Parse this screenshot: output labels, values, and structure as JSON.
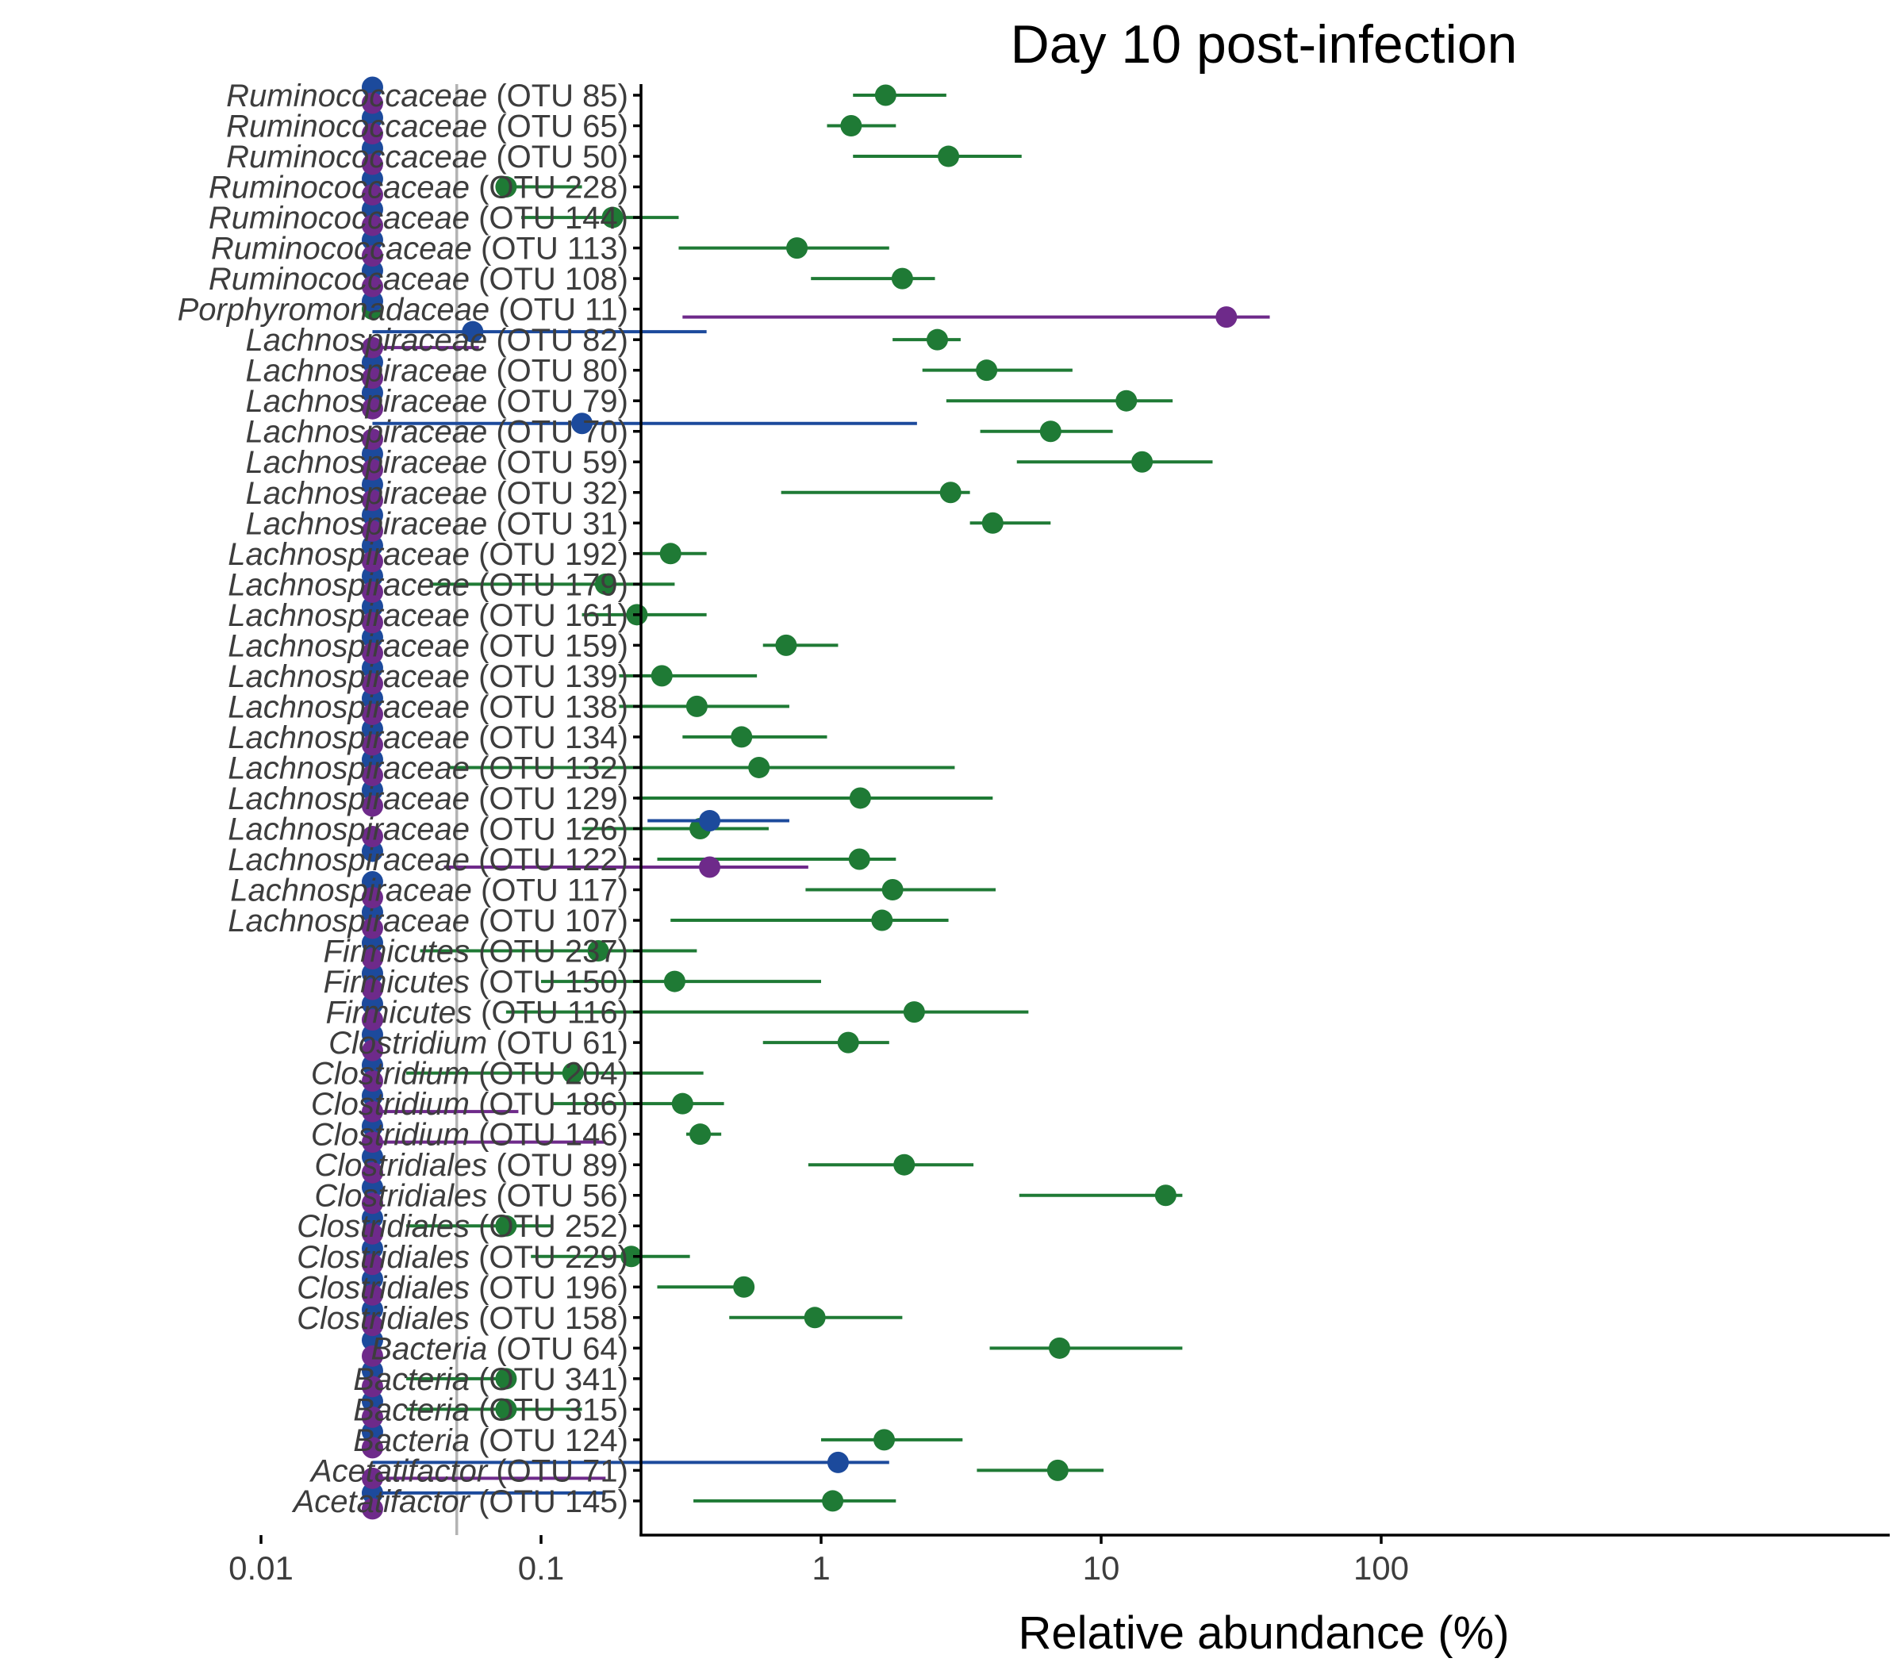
{
  "chart_data": {
    "type": "scatter",
    "title": "Day 10 post-infection",
    "xlabel": "Relative abundance (%)",
    "ylabel": "",
    "x_scale": "log10",
    "xlim": [
      0.005,
      150
    ],
    "x_ticks": [
      0.01,
      0.1,
      1,
      10,
      100
    ],
    "x_tick_labels": [
      "0.01",
      "0.1",
      "1",
      "10",
      "100"
    ],
    "reference_line_x": 0.05,
    "grid": false,
    "legend": "none",
    "colors": {
      "green": "#1f7a35",
      "blue": "#1c4a9c",
      "purple": "#6e2a8a",
      "reference_line": "#b3b3b3",
      "axis": "#000000"
    },
    "categories": [
      {
        "genus": "Ruminococcaceae",
        "otu": "(OTU 85)"
      },
      {
        "genus": "Ruminococcaceae",
        "otu": "(OTU 65)"
      },
      {
        "genus": "Ruminococcaceae",
        "otu": "(OTU 50)"
      },
      {
        "genus": "Ruminococcaceae",
        "otu": "(OTU 228)"
      },
      {
        "genus": "Ruminococcaceae",
        "otu": "(OTU 144)"
      },
      {
        "genus": "Ruminococcaceae",
        "otu": "(OTU 113)"
      },
      {
        "genus": "Ruminococcaceae",
        "otu": "(OTU 108)"
      },
      {
        "genus": "Porphyromonadaceae",
        "otu": "(OTU 11)"
      },
      {
        "genus": "Lachnospiraceae",
        "otu": "(OTU 82)"
      },
      {
        "genus": "Lachnospiraceae",
        "otu": "(OTU 80)"
      },
      {
        "genus": "Lachnospiraceae",
        "otu": "(OTU 79)"
      },
      {
        "genus": "Lachnospiraceae",
        "otu": "(OTU 70)"
      },
      {
        "genus": "Lachnospiraceae",
        "otu": "(OTU 59)"
      },
      {
        "genus": "Lachnospiraceae",
        "otu": "(OTU 32)"
      },
      {
        "genus": "Lachnospiraceae",
        "otu": "(OTU 31)"
      },
      {
        "genus": "Lachnospiraceae",
        "otu": "(OTU 192)"
      },
      {
        "genus": "Lachnospiraceae",
        "otu": "(OTU 179)"
      },
      {
        "genus": "Lachnospiraceae",
        "otu": "(OTU 161)"
      },
      {
        "genus": "Lachnospiraceae",
        "otu": "(OTU 159)"
      },
      {
        "genus": "Lachnospiraceae",
        "otu": "(OTU 139)"
      },
      {
        "genus": "Lachnospiraceae",
        "otu": "(OTU 138)"
      },
      {
        "genus": "Lachnospiraceae",
        "otu": "(OTU 134)"
      },
      {
        "genus": "Lachnospiraceae",
        "otu": "(OTU 132)"
      },
      {
        "genus": "Lachnospiraceae",
        "otu": "(OTU 129)"
      },
      {
        "genus": "Lachnospiraceae",
        "otu": "(OTU 126)"
      },
      {
        "genus": "Lachnospiraceae",
        "otu": "(OTU 122)"
      },
      {
        "genus": "Lachnospiraceae",
        "otu": "(OTU 117)"
      },
      {
        "genus": "Lachnospiraceae",
        "otu": "(OTU 107)"
      },
      {
        "genus": "Firmicutes",
        "otu": "(OTU 237)"
      },
      {
        "genus": "Firmicutes",
        "otu": "(OTU 150)"
      },
      {
        "genus": "Firmicutes",
        "otu": "(OTU 116)"
      },
      {
        "genus": "Clostridium",
        "otu": "(OTU 61)"
      },
      {
        "genus": "Clostridium",
        "otu": "(OTU 204)"
      },
      {
        "genus": "Clostridium",
        "otu": "(OTU 186)"
      },
      {
        "genus": "Clostridium",
        "otu": "(OTU 146)"
      },
      {
        "genus": "Clostridiales",
        "otu": "(OTU 89)"
      },
      {
        "genus": "Clostridiales",
        "otu": "(OTU 56)"
      },
      {
        "genus": "Clostridiales",
        "otu": "(OTU 252)"
      },
      {
        "genus": "Clostridiales",
        "otu": "(OTU 229)"
      },
      {
        "genus": "Clostridiales",
        "otu": "(OTU 196)"
      },
      {
        "genus": "Clostridiales",
        "otu": "(OTU 158)"
      },
      {
        "genus": "Bacteria",
        "otu": "(OTU 64)"
      },
      {
        "genus": "Bacteria",
        "otu": "(OTU 341)"
      },
      {
        "genus": "Bacteria",
        "otu": "(OTU 315)"
      },
      {
        "genus": "Bacteria",
        "otu": "(OTU 124)"
      },
      {
        "genus": "Acetatifactor",
        "otu": "(OTU 71)"
      },
      {
        "genus": "Acetatifactor",
        "otu": "(OTU 145)"
      }
    ],
    "baseline_value": 0.025,
    "series": [
      {
        "color": "green",
        "points": [
          {
            "x": 1.7,
            "lo": 1.3,
            "hi": 2.8
          },
          {
            "x": 1.28,
            "lo": 1.05,
            "hi": 1.85
          },
          {
            "x": 2.85,
            "lo": 1.3,
            "hi": 5.2
          },
          {
            "x": 0.075,
            "lo": 0.075,
            "hi": 0.14
          },
          {
            "x": 0.18,
            "lo": 0.085,
            "hi": 0.31
          },
          {
            "x": 0.82,
            "lo": 0.31,
            "hi": 1.75
          },
          {
            "x": 1.95,
            "lo": 0.92,
            "hi": 2.55
          },
          {
            "x": 0.025
          },
          {
            "x": 2.6,
            "lo": 1.8,
            "hi": 3.15
          },
          {
            "x": 3.9,
            "lo": 2.3,
            "hi": 7.9
          },
          {
            "x": 12.3,
            "lo": 2.8,
            "hi": 18.0
          },
          {
            "x": 6.6,
            "lo": 3.7,
            "hi": 11.0
          },
          {
            "x": 14.0,
            "lo": 5.0,
            "hi": 25.0
          },
          {
            "x": 2.9,
            "lo": 0.72,
            "hi": 3.4
          },
          {
            "x": 4.1,
            "lo": 3.4,
            "hi": 6.6
          },
          {
            "x": 0.29,
            "lo": 0.23,
            "hi": 0.39
          },
          {
            "x": 0.17,
            "lo": 0.04,
            "hi": 0.3
          },
          {
            "x": 0.22,
            "lo": 0.14,
            "hi": 0.39
          },
          {
            "x": 0.75,
            "lo": 0.62,
            "hi": 1.15
          },
          {
            "x": 0.27,
            "lo": 0.19,
            "hi": 0.59
          },
          {
            "x": 0.36,
            "lo": 0.19,
            "hi": 0.77
          },
          {
            "x": 0.52,
            "lo": 0.32,
            "hi": 1.05
          },
          {
            "x": 0.6,
            "lo": 0.047,
            "hi": 3.0
          },
          {
            "x": 1.38,
            "lo": 0.22,
            "hi": 4.1
          },
          {
            "x": 0.37,
            "lo": 0.14,
            "hi": 0.65
          },
          {
            "x": 1.37,
            "lo": 0.26,
            "hi": 1.85
          },
          {
            "x": 1.8,
            "lo": 0.88,
            "hi": 4.2
          },
          {
            "x": 1.65,
            "lo": 0.29,
            "hi": 2.85
          },
          {
            "x": 0.16,
            "lo": 0.037,
            "hi": 0.36
          },
          {
            "x": 0.3,
            "lo": 0.1,
            "hi": 1.0
          },
          {
            "x": 2.15,
            "lo": 0.075,
            "hi": 5.5
          },
          {
            "x": 1.25,
            "lo": 0.62,
            "hi": 1.75
          },
          {
            "x": 0.13,
            "lo": 0.033,
            "hi": 0.38
          },
          {
            "x": 0.32,
            "lo": 0.11,
            "hi": 0.45
          },
          {
            "x": 0.37,
            "lo": 0.33,
            "hi": 0.44
          },
          {
            "x": 1.98,
            "lo": 0.9,
            "hi": 3.5
          },
          {
            "x": 17.0,
            "lo": 5.1,
            "hi": 19.5
          },
          {
            "x": 0.075,
            "lo": 0.033,
            "hi": 0.11
          },
          {
            "x": 0.21,
            "lo": 0.092,
            "hi": 0.34
          },
          {
            "x": 0.53,
            "lo": 0.26,
            "hi": 0.53
          },
          {
            "x": 0.95,
            "lo": 0.47,
            "hi": 1.95
          },
          {
            "x": 7.1,
            "lo": 4.0,
            "hi": 19.5
          },
          {
            "x": 0.075,
            "lo": 0.033,
            "hi": 0.075
          },
          {
            "x": 0.075,
            "lo": 0.033,
            "hi": 0.14
          },
          {
            "x": 1.68,
            "lo": 1.0,
            "hi": 3.2
          },
          {
            "x": 7.0,
            "lo": 3.6,
            "hi": 10.2
          },
          {
            "x": 1.1,
            "lo": 0.35,
            "hi": 1.85
          }
        ]
      },
      {
        "color": "blue",
        "points": [
          {
            "x": 0.025
          },
          {
            "x": 0.025
          },
          {
            "x": 0.025
          },
          {
            "x": 0.025
          },
          {
            "x": 0.025
          },
          {
            "x": 0.025
          },
          {
            "x": 0.025
          },
          {
            "x": 0.025
          },
          {
            "x": 0.057,
            "lo": 0.025,
            "hi": 0.39
          },
          {
            "x": 0.025
          },
          {
            "x": 0.025
          },
          {
            "x": 0.14,
            "lo": 0.025,
            "hi": 2.2
          },
          {
            "x": 0.025
          },
          {
            "x": 0.025
          },
          {
            "x": 0.025
          },
          {
            "x": 0.025
          },
          {
            "x": 0.025
          },
          {
            "x": 0.025
          },
          {
            "x": 0.025
          },
          {
            "x": 0.025
          },
          {
            "x": 0.025
          },
          {
            "x": 0.025
          },
          {
            "x": 0.025
          },
          {
            "x": 0.025
          },
          {
            "x": 0.4,
            "lo": 0.24,
            "hi": 0.77
          },
          {
            "x": 0.025
          },
          {
            "x": 0.025
          },
          {
            "x": 0.025
          },
          {
            "x": 0.025
          },
          {
            "x": 0.025
          },
          {
            "x": 0.025
          },
          {
            "x": 0.025
          },
          {
            "x": 0.025
          },
          {
            "x": 0.025
          },
          {
            "x": 0.025
          },
          {
            "x": 0.025
          },
          {
            "x": 0.025
          },
          {
            "x": 0.025
          },
          {
            "x": 0.025
          },
          {
            "x": 0.025
          },
          {
            "x": 0.025
          },
          {
            "x": 0.025
          },
          {
            "x": 0.025
          },
          {
            "x": 0.025
          },
          {
            "x": 0.025
          },
          {
            "x": 1.15,
            "lo": 0.025,
            "hi": 1.75
          },
          {
            "x": 0.025,
            "lo": 0.025,
            "hi": 0.17
          }
        ]
      },
      {
        "color": "purple",
        "points": [
          {
            "x": 0.025
          },
          {
            "x": 0.025
          },
          {
            "x": 0.025
          },
          {
            "x": 0.025
          },
          {
            "x": 0.025
          },
          {
            "x": 0.025
          },
          {
            "x": 0.025
          },
          {
            "x": 28.0,
            "lo": 0.32,
            "hi": 40.0
          },
          {
            "x": 0.025,
            "lo": 0.025,
            "hi": 0.06
          },
          {
            "x": 0.025
          },
          {
            "x": 0.025
          },
          {
            "x": 0.025
          },
          {
            "x": 0.025
          },
          {
            "x": 0.025
          },
          {
            "x": 0.025
          },
          {
            "x": 0.025
          },
          {
            "x": 0.025
          },
          {
            "x": 0.025
          },
          {
            "x": 0.025
          },
          {
            "x": 0.025
          },
          {
            "x": 0.025
          },
          {
            "x": 0.025
          },
          {
            "x": 0.025
          },
          {
            "x": 0.025
          },
          {
            "x": 0.025
          },
          {
            "x": 0.4,
            "lo": 0.045,
            "hi": 0.9
          },
          {
            "x": 0.025
          },
          {
            "x": 0.025
          },
          {
            "x": 0.025
          },
          {
            "x": 0.025
          },
          {
            "x": 0.025
          },
          {
            "x": 0.025
          },
          {
            "x": 0.025
          },
          {
            "x": 0.025,
            "lo": 0.025,
            "hi": 0.083
          },
          {
            "x": 0.025,
            "lo": 0.025,
            "hi": 0.17
          },
          {
            "x": 0.025
          },
          {
            "x": 0.025
          },
          {
            "x": 0.025
          },
          {
            "x": 0.025
          },
          {
            "x": 0.025
          },
          {
            "x": 0.025
          },
          {
            "x": 0.025
          },
          {
            "x": 0.025
          },
          {
            "x": 0.025
          },
          {
            "x": 0.025
          },
          {
            "x": 0.025,
            "lo": 0.025,
            "hi": 0.17
          },
          {
            "x": 0.025
          }
        ]
      }
    ]
  }
}
